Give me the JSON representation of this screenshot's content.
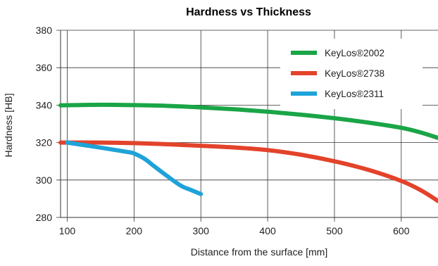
{
  "chart_data": {
    "type": "line",
    "title": "Hardness vs Thickness",
    "xlabel": "Distance from the surface [mm]",
    "ylabel": "Hardness [HB]",
    "xlim": [
      90,
      655
    ],
    "ylim": [
      280,
      380
    ],
    "x_ticks": [
      100,
      200,
      300,
      400,
      500,
      600
    ],
    "y_ticks": [
      280,
      300,
      320,
      340,
      360,
      380
    ],
    "x_tick_labels": [
      "100",
      "200",
      "300",
      "400",
      "500",
      "600"
    ],
    "y_tick_labels": [
      "280",
      "300",
      "320",
      "340",
      "360",
      "380"
    ],
    "grid": true,
    "legend_position": "top-right",
    "series": [
      {
        "name": "KeyLos®2002",
        "color": "#1aa547",
        "x": [
          90,
          150,
          200,
          250,
          300,
          350,
          400,
          450,
          500,
          550,
          600,
          630,
          655
        ],
        "y": [
          339.9,
          340.2,
          340.0,
          339.6,
          338.8,
          337.8,
          336.5,
          334.9,
          333.0,
          330.7,
          327.9,
          325.3,
          322.5
        ]
      },
      {
        "name": "KeyLos®2738",
        "color": "#e3432b",
        "x": [
          90,
          150,
          200,
          250,
          300,
          350,
          400,
          450,
          500,
          550,
          600,
          630,
          655
        ],
        "y": [
          320.0,
          320.0,
          319.7,
          319.1,
          318.3,
          317.4,
          316.0,
          313.5,
          310.0,
          305.5,
          299.5,
          294.4,
          288.8
        ]
      },
      {
        "name": "KeyLos®2311",
        "color": "#1ea3d8",
        "x": [
          100,
          150,
          190,
          200,
          215,
          230,
          250,
          270,
          285,
          300
        ],
        "y": [
          320.0,
          317.3,
          315.0,
          314.2,
          311.5,
          307.4,
          302.0,
          297.0,
          294.7,
          292.5
        ]
      }
    ]
  }
}
